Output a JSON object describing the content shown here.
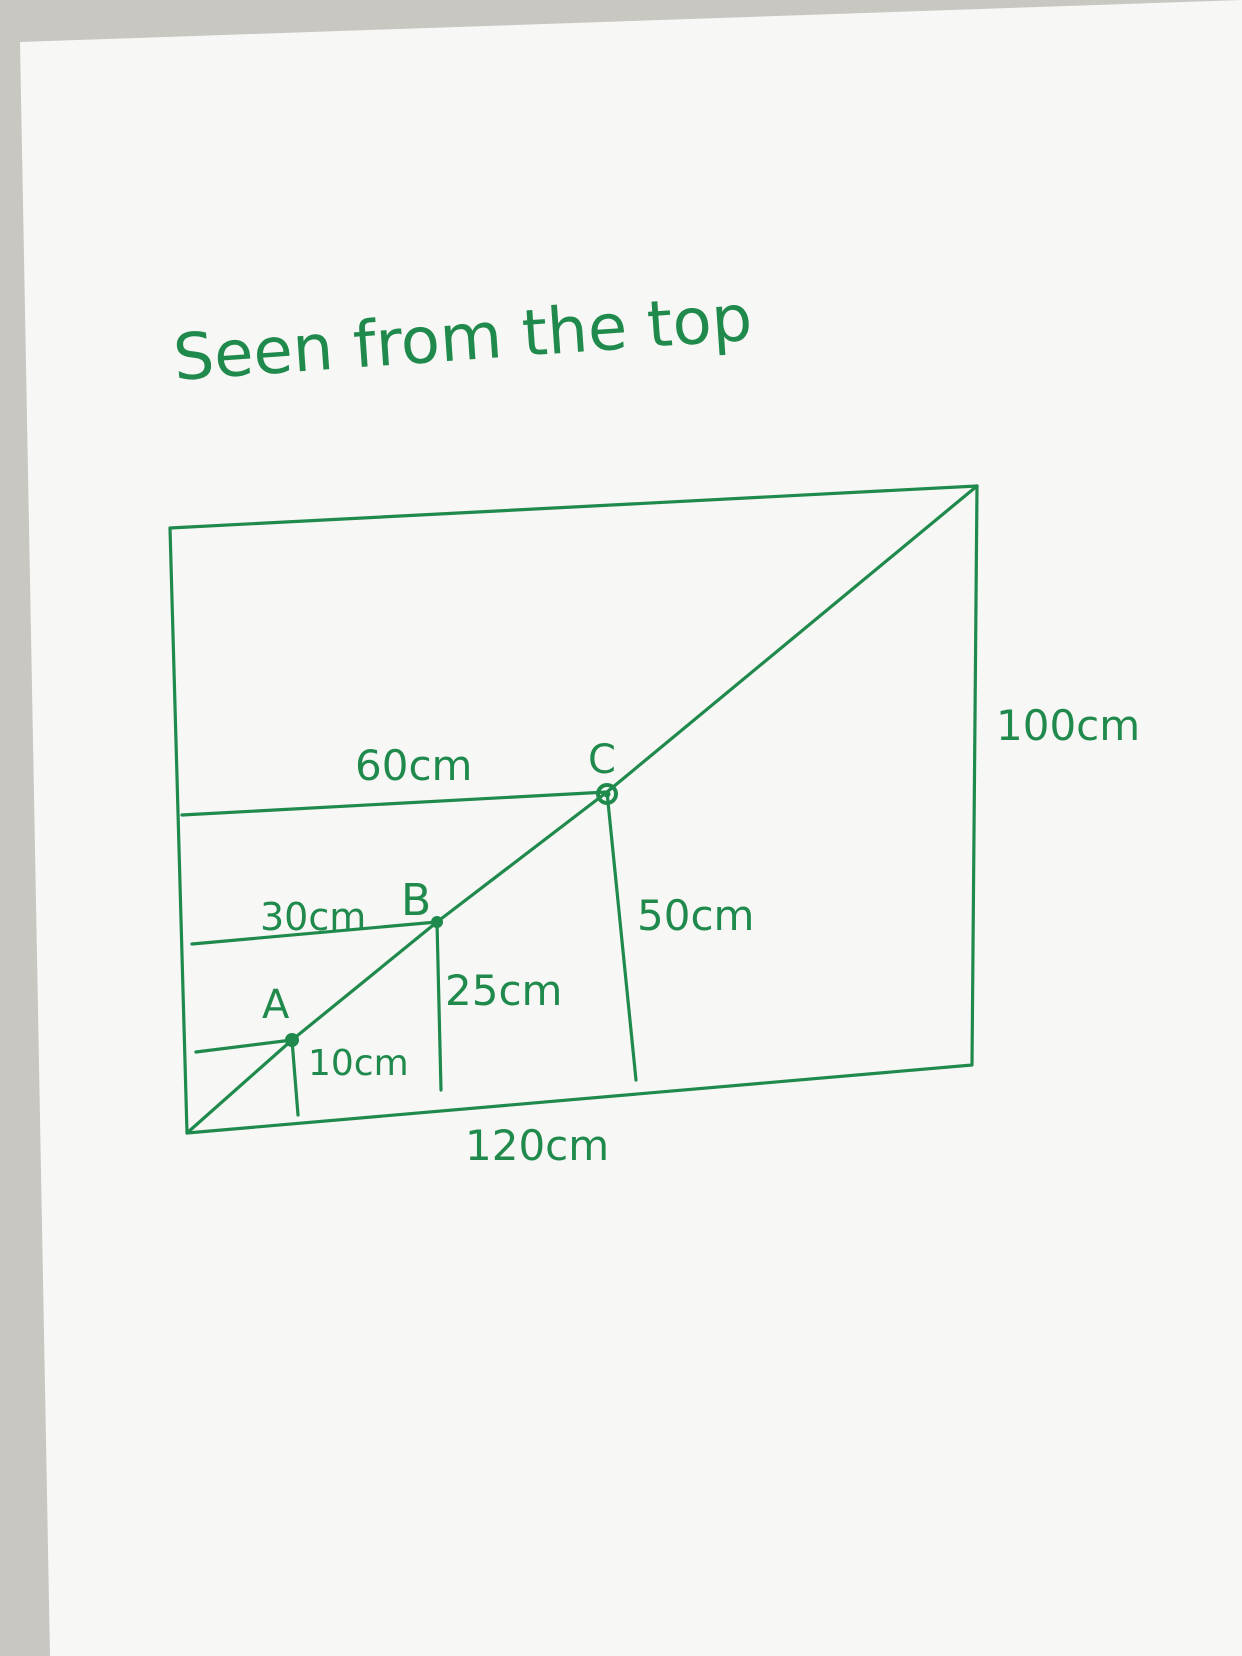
{
  "title": "Seen from the top",
  "colors": {
    "ink": "#1f8a4c",
    "paper": "#f7f7f5",
    "background": "#c9c7c1"
  },
  "points": {
    "a": "A",
    "b": "B",
    "c": "C"
  },
  "dimensions": {
    "total_width": "120cm",
    "total_height": "100cm",
    "c_width": "60cm",
    "c_height": "50cm",
    "b_width": "30cm",
    "b_height": "25cm",
    "a_height": "10cm"
  }
}
